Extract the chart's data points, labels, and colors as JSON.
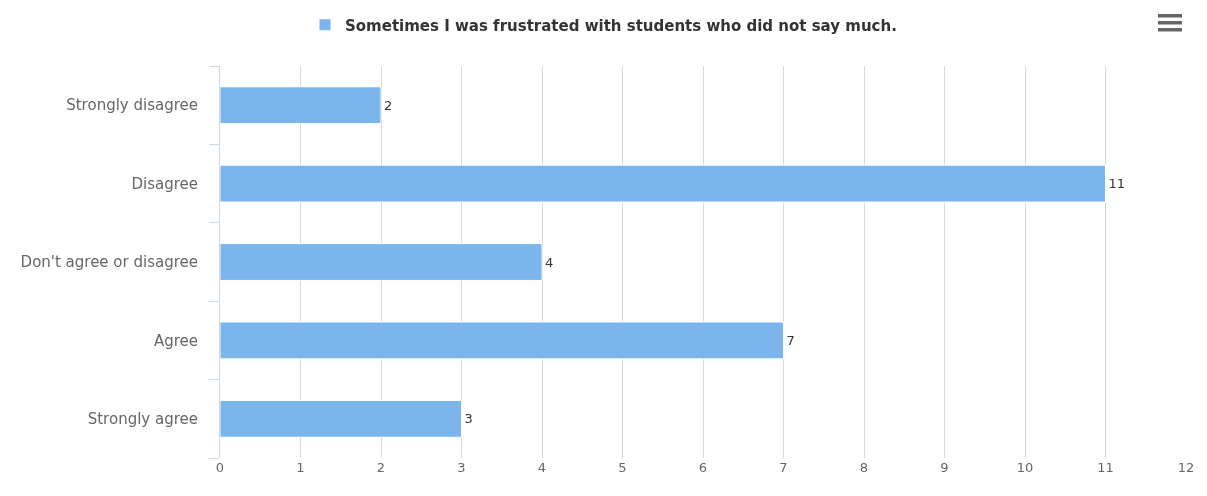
{
  "chart_data": {
    "type": "bar",
    "orientation": "horizontal",
    "categories": [
      "Strongly disagree",
      "Disagree",
      "Don't agree or disagree",
      "Agree",
      "Strongly agree"
    ],
    "series": [
      {
        "name": "Sometimes I was frustrated with students who did not say much.",
        "color": "#7cb5ec",
        "values": [
          2,
          11,
          4,
          7,
          3
        ]
      }
    ],
    "xlim": [
      0,
      12
    ],
    "xticks": [
      0,
      1,
      2,
      3,
      4,
      5,
      6,
      7,
      8,
      9,
      10,
      11,
      12
    ],
    "grid": "x",
    "legend": "top",
    "data_labels": true
  }
}
